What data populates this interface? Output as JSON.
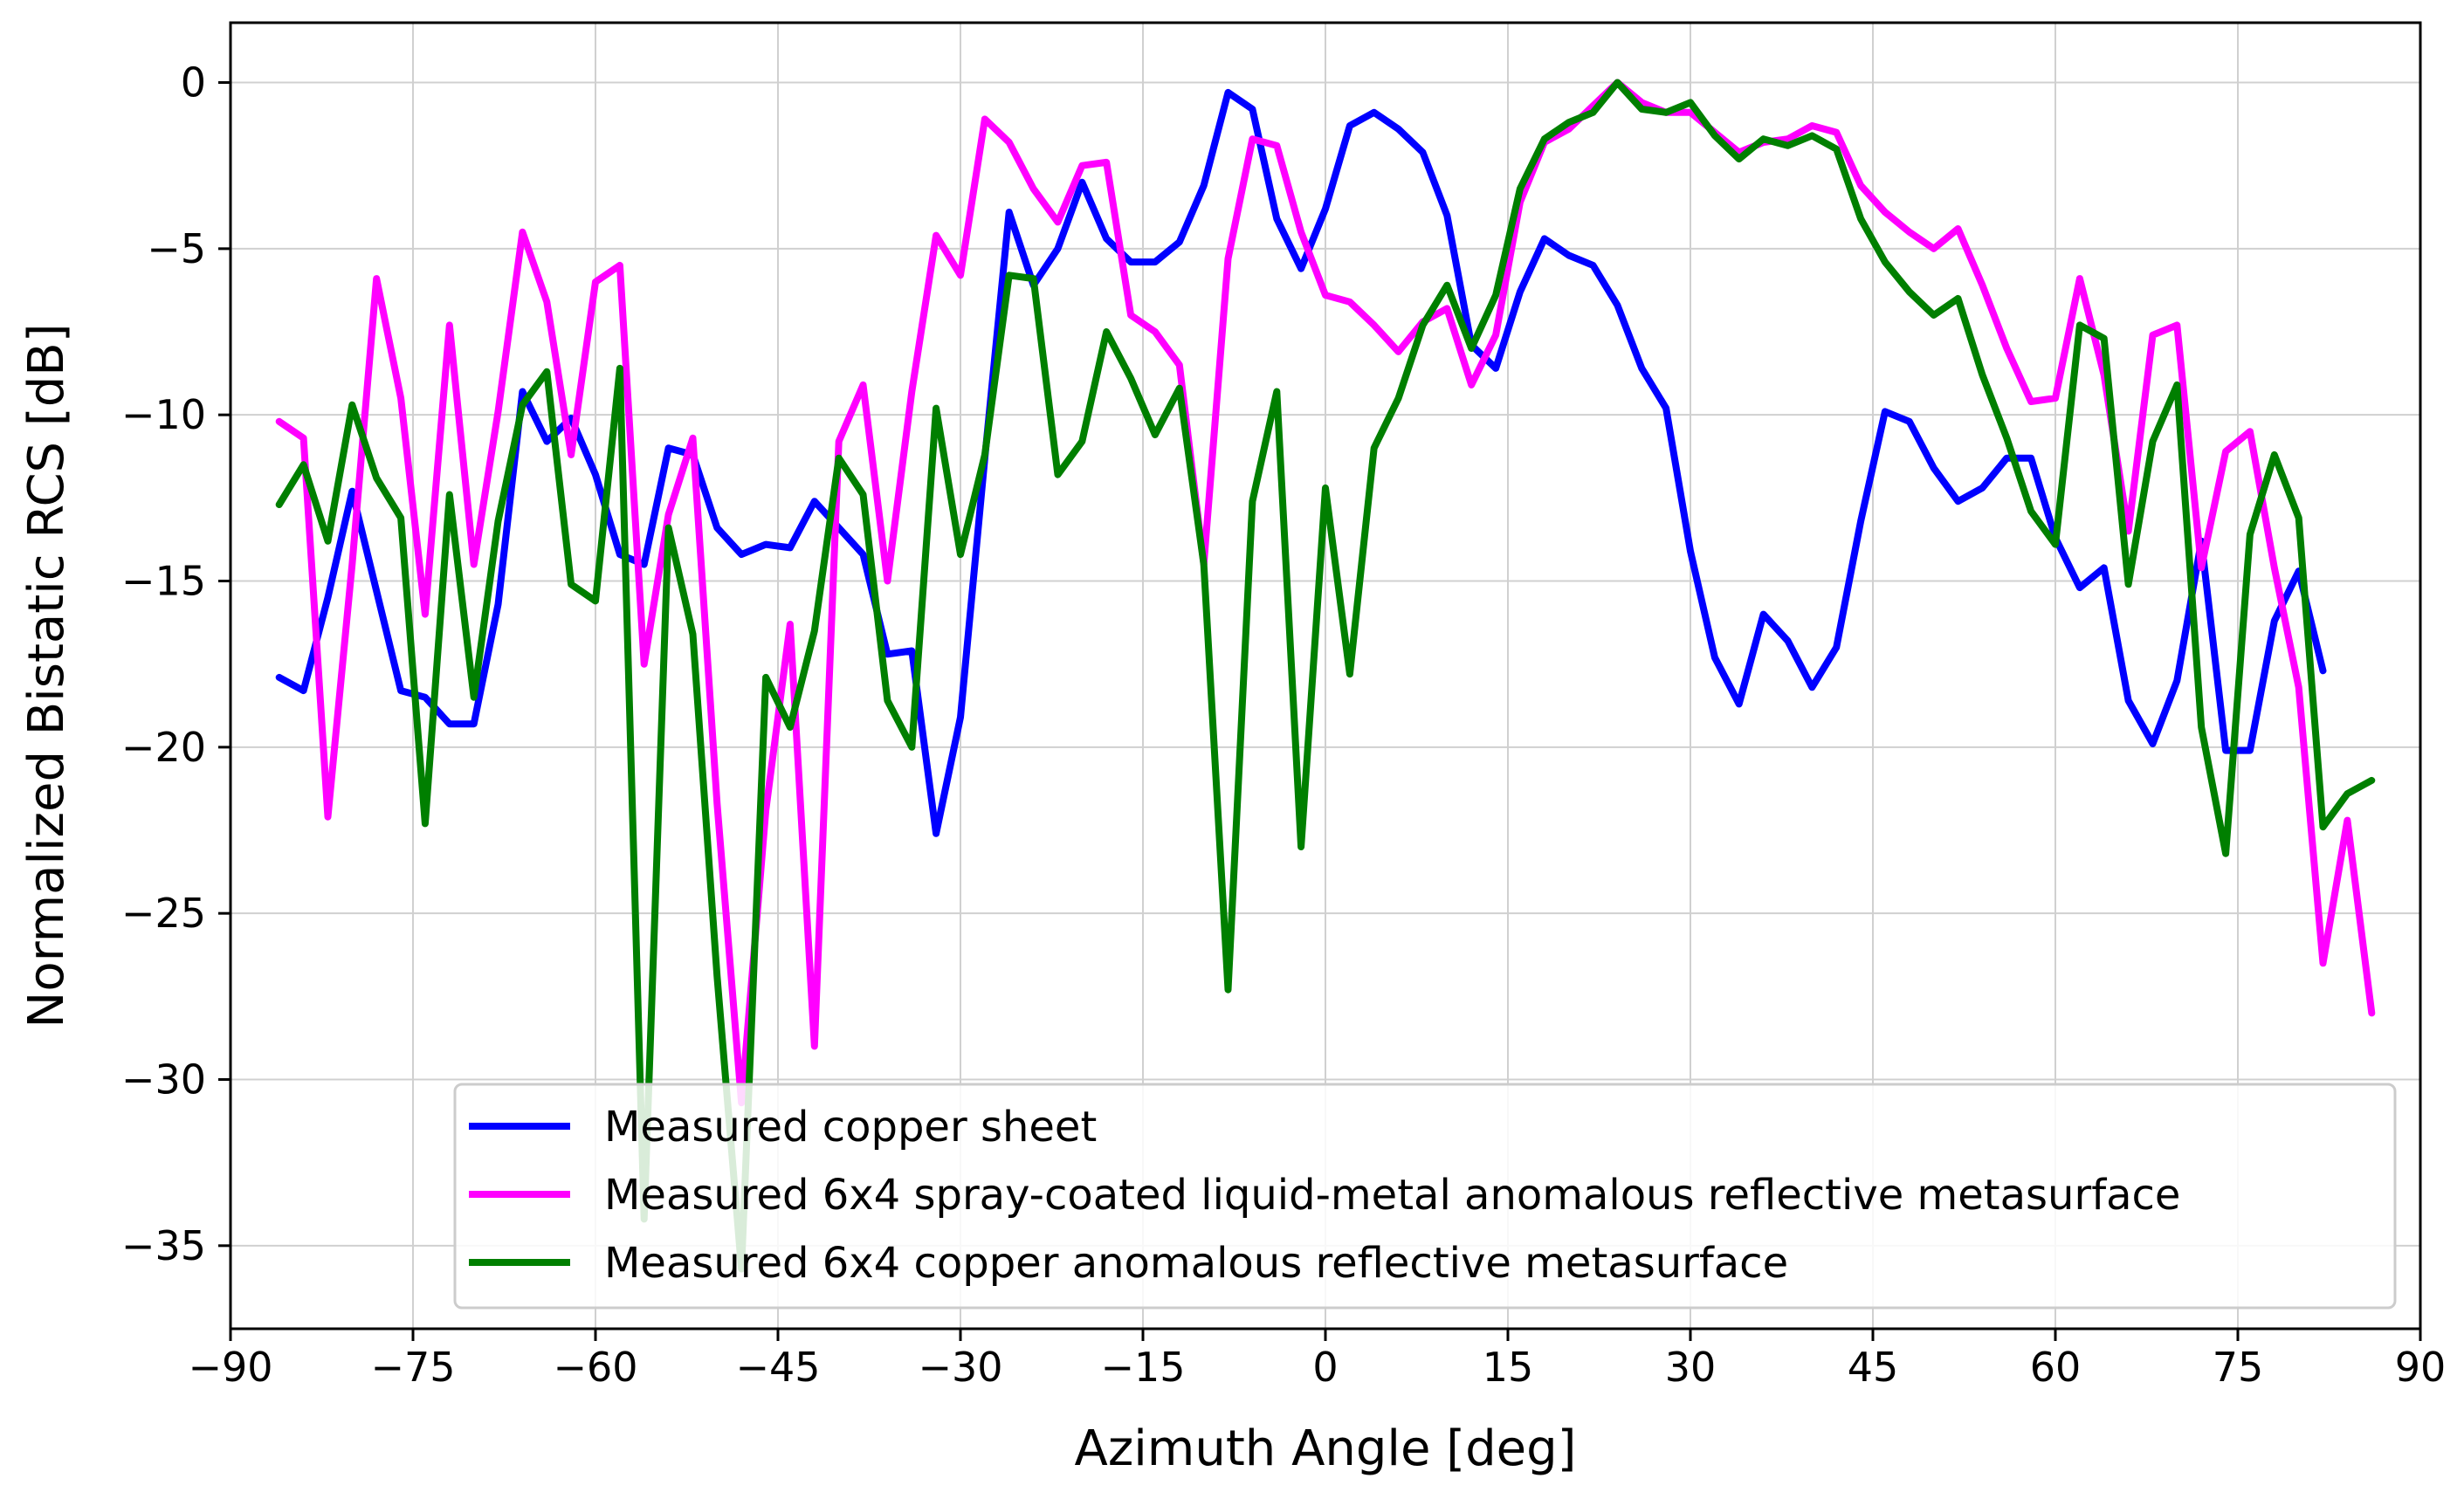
{
  "chart_data": {
    "type": "line",
    "title": "",
    "xlabel": "Azimuth Angle [deg]",
    "ylabel": "Normalized Bistatic RCS [dB]",
    "xlim": [
      -90,
      90
    ],
    "ylim": [
      -37.5,
      1.8
    ],
    "xticks": [
      -90,
      -75,
      -60,
      -45,
      -30,
      -15,
      0,
      15,
      30,
      45,
      60,
      75,
      90
    ],
    "yticks": [
      -35,
      -30,
      -25,
      -20,
      -15,
      -10,
      -5,
      0
    ],
    "xtick_labels": [
      "−90",
      "−75",
      "−60",
      "−45",
      "−30",
      "−15",
      "0",
      "15",
      "30",
      "45",
      "60",
      "75",
      "90"
    ],
    "ytick_labels": [
      "−35",
      "−30",
      "−25",
      "−20",
      "−15",
      "−10",
      "−5",
      "0"
    ],
    "grid": true,
    "legend_position": "bottom-right",
    "series": [
      {
        "name": "Measured copper sheet",
        "color": "#0000ff",
        "x": [
          -86,
          -84,
          -82,
          -80,
          -78,
          -76,
          -74,
          -72,
          -70,
          -68,
          -66,
          -64,
          -62,
          -60,
          -58,
          -56,
          -54,
          -52,
          -50,
          -48,
          -46,
          -44,
          -42,
          -40,
          -38,
          -36,
          -34,
          -32,
          -30,
          -28,
          -26,
          -24,
          -22,
          -20,
          -18,
          -16,
          -14,
          -12,
          -10,
          -8,
          -6,
          -4,
          -2,
          0,
          2,
          4,
          6,
          8,
          10,
          12,
          14,
          16,
          18,
          20,
          22,
          24,
          26,
          28,
          30,
          32,
          34,
          36,
          38,
          40,
          42,
          44,
          46,
          48,
          50,
          52,
          54,
          56,
          58,
          60,
          62,
          64,
          66,
          68,
          70,
          72,
          74,
          76,
          78,
          80,
          82
        ],
        "y": [
          -17.9,
          -18.3,
          -15.5,
          -12.3,
          -15.3,
          -18.3,
          -18.5,
          -19.3,
          -19.3,
          -15.7,
          -9.3,
          -10.8,
          -10.1,
          -11.8,
          -14.2,
          -14.5,
          -11,
          -11.2,
          -13.4,
          -14.2,
          -13.9,
          -14,
          -12.6,
          -13.4,
          -14.2,
          -17.2,
          -17.1,
          -22.6,
          -19.1,
          -11.3,
          -3.9,
          -6.1,
          -5,
          -3,
          -4.7,
          -5.4,
          -5.4,
          -4.8,
          -3.1,
          -0.3,
          -0.8,
          -4.1,
          -5.6,
          -3.8,
          -1.3,
          -0.9,
          -1.4,
          -2.1,
          -4,
          -7.9,
          -8.6,
          -6.3,
          -4.7,
          -5.2,
          -5.5,
          -6.7,
          -8.6,
          -9.8,
          -14.1,
          -17.3,
          -18.7,
          -16,
          -16.8,
          -18.2,
          -17,
          -13.2,
          -9.9,
          -10.2,
          -11.6,
          -12.6,
          -12.2,
          -11.3,
          -11.3,
          -13.7,
          -15.2,
          -14.6,
          -18.6,
          -19.9,
          -18,
          -13.8,
          -20.1,
          -20.1,
          -16.2,
          -14.7,
          -17.7
        ]
      },
      {
        "name": "Measured 6x4 spray-coated liquid-metal anomalous reflective metasurface",
        "color": "#ff00ff",
        "x": [
          -86,
          -84,
          -82,
          -80,
          -78,
          -76,
          -74,
          -72,
          -70,
          -68,
          -66,
          -64,
          -62,
          -60,
          -58,
          -56,
          -54,
          -52,
          -50,
          -48,
          -46,
          -44,
          -42,
          -40,
          -38,
          -36,
          -34,
          -32,
          -30,
          -28,
          -26,
          -24,
          -22,
          -20,
          -18,
          -16,
          -14,
          -12,
          -10,
          -8,
          -6,
          -4,
          -2,
          0,
          2,
          4,
          6,
          8,
          10,
          12,
          14,
          16,
          18,
          20,
          22,
          24,
          26,
          28,
          30,
          32,
          34,
          36,
          38,
          40,
          42,
          44,
          46,
          48,
          50,
          52,
          54,
          56,
          58,
          60,
          62,
          64,
          66,
          68,
          70,
          72,
          74,
          76,
          78,
          80,
          82,
          84,
          86
        ],
        "y": [
          -10.2,
          -10.7,
          -22.1,
          -14.5,
          -5.9,
          -9.5,
          -16,
          -7.3,
          -14.5,
          -9.9,
          -4.5,
          -6.6,
          -11.2,
          -6,
          -5.5,
          -17.5,
          -13,
          -10.7,
          -21.7,
          -30.7,
          -21.9,
          -16.3,
          -29,
          -10.8,
          -9.1,
          -15,
          -9.3,
          -4.6,
          -5.8,
          -1.1,
          -1.8,
          -3.2,
          -4.2,
          -2.5,
          -2.4,
          -7,
          -7.5,
          -8.5,
          -14.5,
          -5.3,
          -1.7,
          -1.9,
          -4.5,
          -6.4,
          -6.6,
          -7.3,
          -8.1,
          -7.2,
          -6.8,
          -9.1,
          -7.6,
          -3.6,
          -1.8,
          -1.4,
          -0.7,
          0,
          -0.6,
          -0.9,
          -0.9,
          -1.5,
          -2.1,
          -1.8,
          -1.7,
          -1.3,
          -1.5,
          -3.1,
          -3.9,
          -4.5,
          -5,
          -4.4,
          -6.1,
          -8,
          -9.6,
          -9.5,
          -5.9,
          -8.8,
          -13.5,
          -7.6,
          -7.3,
          -14.6,
          -11.1,
          -10.5,
          -14.6,
          -18.2,
          -26.5,
          -22.2,
          -28
        ]
      },
      {
        "name": "Measured 6x4 copper anomalous reflective metasurface",
        "color": "#007f00",
        "x": [
          -86,
          -84,
          -82,
          -80,
          -78,
          -76,
          -74,
          -72,
          -70,
          -68,
          -66,
          -64,
          -62,
          -60,
          -58,
          -56,
          -54,
          -52,
          -50,
          -48,
          -46,
          -44,
          -42,
          -40,
          -38,
          -36,
          -34,
          -32,
          -30,
          -28,
          -26,
          -24,
          -22,
          -20,
          -18,
          -16,
          -14,
          -12,
          -10,
          -8,
          -6,
          -4,
          -2,
          0,
          2,
          4,
          6,
          8,
          10,
          12,
          14,
          16,
          18,
          20,
          22,
          24,
          26,
          28,
          30,
          32,
          34,
          36,
          38,
          40,
          42,
          44,
          46,
          48,
          50,
          52,
          54,
          56,
          58,
          60,
          62,
          64,
          66,
          68,
          70,
          72,
          74,
          76,
          78,
          80,
          82,
          84,
          86
        ],
        "y": [
          -12.7,
          -11.5,
          -13.8,
          -9.7,
          -11.9,
          -13.1,
          -22.3,
          -12.4,
          -18.5,
          -13.2,
          -9.7,
          -8.7,
          -15.1,
          -15.6,
          -8.6,
          -34.2,
          -13.4,
          -16.6,
          -26.9,
          -35.7,
          -17.9,
          -19.4,
          -16.5,
          -11.3,
          -12.4,
          -18.6,
          -20,
          -9.8,
          -14.2,
          -11.2,
          -5.8,
          -5.9,
          -11.8,
          -10.8,
          -7.5,
          -8.9,
          -10.6,
          -9.2,
          -14.5,
          -27.3,
          -12.6,
          -9.3,
          -23,
          -12.2,
          -17.8,
          -11,
          -9.5,
          -7.3,
          -6.1,
          -8,
          -6.4,
          -3.2,
          -1.7,
          -1.2,
          -0.9,
          0,
          -0.8,
          -0.9,
          -0.6,
          -1.6,
          -2.3,
          -1.7,
          -1.9,
          -1.6,
          -2,
          -4.1,
          -5.4,
          -6.3,
          -7,
          -6.5,
          -8.8,
          -10.7,
          -12.9,
          -13.9,
          -7.3,
          -7.7,
          -15.1,
          -10.8,
          -9.1,
          -19.4,
          -23.2,
          -13.6,
          -11.2,
          -13.1,
          -22.4,
          -21.4,
          -21
        ]
      }
    ]
  }
}
